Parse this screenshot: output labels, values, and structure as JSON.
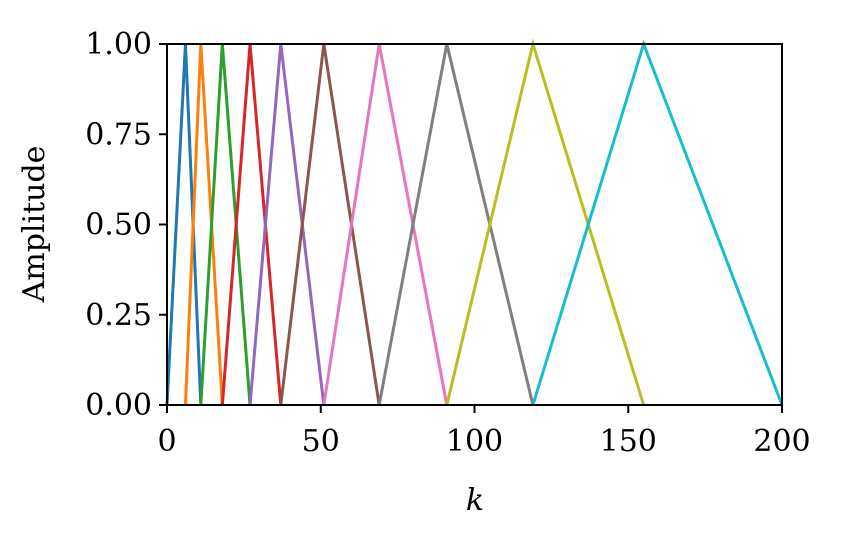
{
  "chart_data": {
    "type": "line",
    "title": "",
    "xlabel": "k",
    "ylabel": "Amplitude",
    "xlim": [
      0,
      200
    ],
    "ylim": [
      0,
      1
    ],
    "xticks": [
      0,
      50,
      100,
      150,
      200
    ],
    "xtick_labels": [
      "0",
      "50",
      "100",
      "150",
      "200"
    ],
    "yticks": [
      0,
      0.25,
      0.5,
      0.75,
      1
    ],
    "ytick_labels": [
      "0.00",
      "0.25",
      "0.50",
      "0.75",
      "1.00"
    ],
    "grid": false,
    "legend": false,
    "series": [
      {
        "color": "#1f77b4",
        "x": [
          0,
          6,
          11
        ],
        "y": [
          0,
          1,
          0
        ]
      },
      {
        "color": "#ff7f0e",
        "x": [
          6,
          11,
          18
        ],
        "y": [
          0,
          1,
          0
        ]
      },
      {
        "color": "#2ca02c",
        "x": [
          11,
          18,
          27
        ],
        "y": [
          0,
          1,
          0
        ]
      },
      {
        "color": "#d62728",
        "x": [
          18,
          27,
          37
        ],
        "y": [
          0,
          1,
          0
        ]
      },
      {
        "color": "#9467bd",
        "x": [
          27,
          37,
          51
        ],
        "y": [
          0,
          1,
          0
        ]
      },
      {
        "color": "#8c564b",
        "x": [
          37,
          51,
          69
        ],
        "y": [
          0,
          1,
          0
        ]
      },
      {
        "color": "#e377c2",
        "x": [
          51,
          69,
          91
        ],
        "y": [
          0,
          1,
          0
        ]
      },
      {
        "color": "#7f7f7f",
        "x": [
          69,
          91,
          119
        ],
        "y": [
          0,
          1,
          0
        ]
      },
      {
        "color": "#bcbd22",
        "x": [
          91,
          119,
          155
        ],
        "y": [
          0,
          1,
          0
        ]
      },
      {
        "color": "#17becf",
        "x": [
          119,
          155,
          200
        ],
        "y": [
          0,
          1,
          0
        ]
      }
    ]
  }
}
